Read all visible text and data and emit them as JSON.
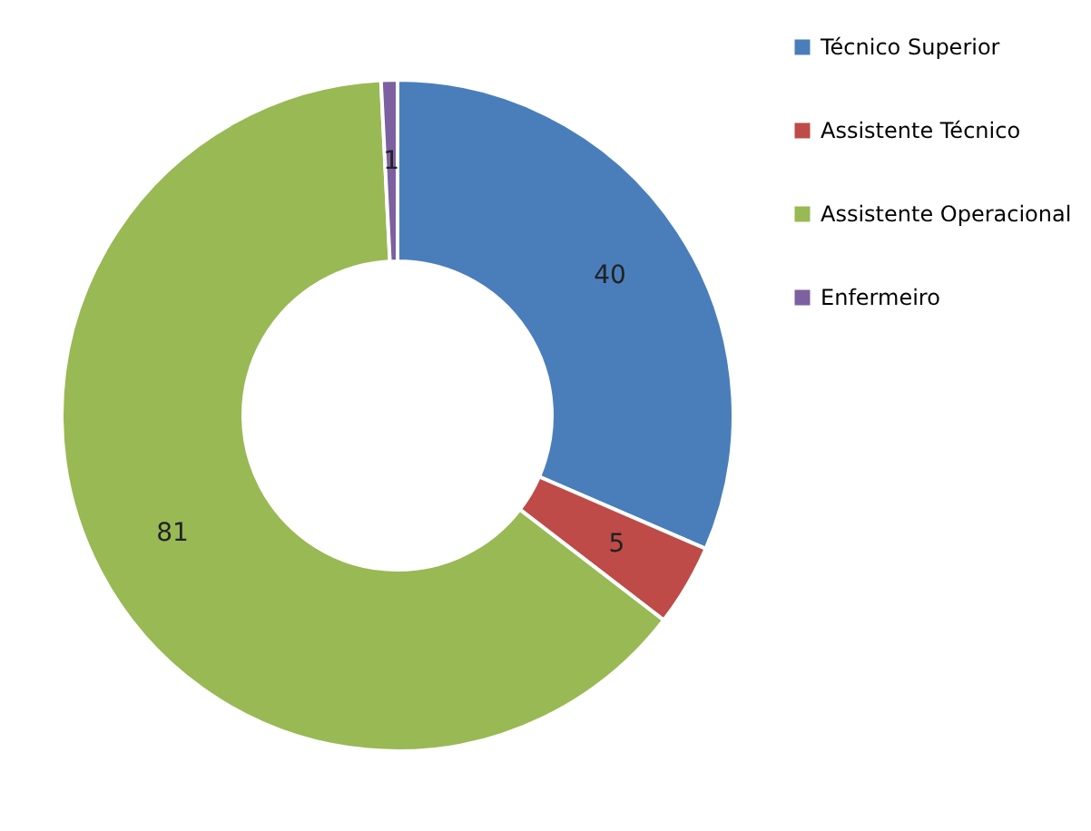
{
  "chart_data": {
    "type": "donut",
    "categories": [
      "Técnico Superior",
      "Assistente Técnico",
      "Assistente Operacional",
      "Enfermeiro"
    ],
    "values": [
      40,
      5,
      81,
      1
    ],
    "colors": [
      "#4a7ebb",
      "#be4b48",
      "#98b954",
      "#7d60a0"
    ],
    "data_labels": true,
    "legend": "right"
  }
}
